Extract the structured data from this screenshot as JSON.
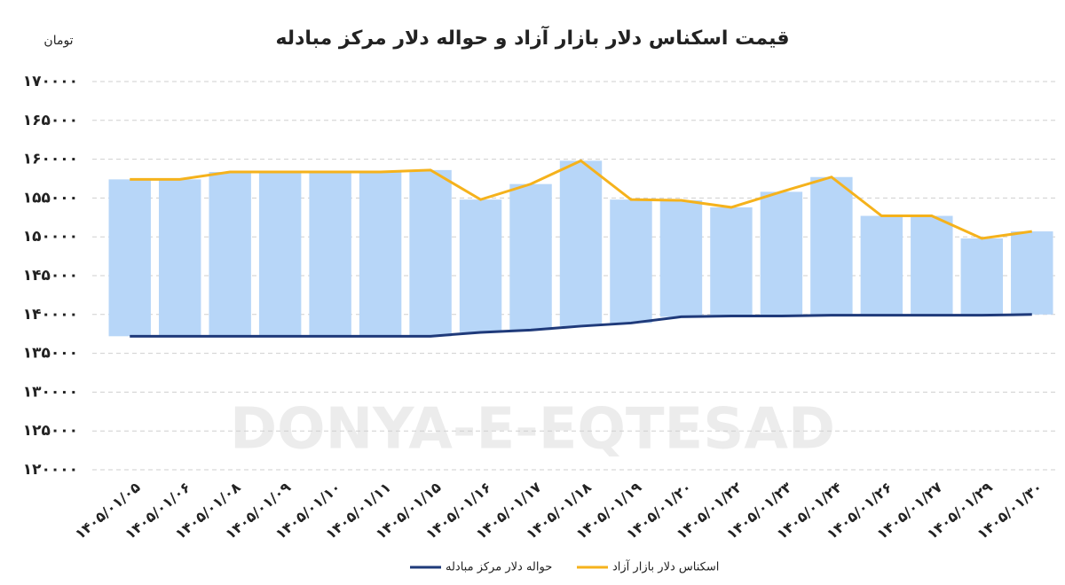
{
  "chart_data": {
    "type": "range-line",
    "title": "قیمت اسکناس دلار بازار آزاد و حواله دلار مرکز مبادله",
    "y_axis_label": "تومان",
    "watermark": "DONYA-E-EQTESAD",
    "categories": [
      "۱۴۰۵/۰۱/۰۵",
      "۱۴۰۵/۰۱/۰۶",
      "۱۴۰۵/۰۱/۰۸",
      "۱۴۰۵/۰۱/۰۹",
      "۱۴۰۵/۰۱/۱۰",
      "۱۴۰۵/۰۱/۱۱",
      "۱۴۰۵/۰۱/۱۵",
      "۱۴۰۵/۰۱/۱۶",
      "۱۴۰۵/۰۱/۱۷",
      "۱۴۰۵/۰۱/۱۸",
      "۱۴۰۵/۰۱/۱۹",
      "۱۴۰۵/۰۱/۲۰",
      "۱۴۰۵/۰۱/۲۲",
      "۱۴۰۵/۰۱/۲۳",
      "۱۴۰۵/۰۱/۲۴",
      "۱۴۰۵/۰۱/۲۶",
      "۱۴۰۵/۰۱/۲۷",
      "۱۴۰۵/۰۱/۲۹",
      "۱۴۰۵/۰۱/۳۰"
    ],
    "series": [
      {
        "name": "حواله دلار مرکز مبادله",
        "color": "#1f3a7a",
        "values": [
          137200,
          137200,
          137200,
          137200,
          137200,
          137200,
          137200,
          137700,
          138000,
          138500,
          138900,
          139700,
          139800,
          139800,
          139900,
          139900,
          139900,
          139900,
          140000
        ]
      },
      {
        "name": "اسکناس دلار بازار آزاد",
        "color": "#f5b21c",
        "values": [
          157400,
          157400,
          158350,
          158350,
          158350,
          158350,
          158600,
          154800,
          156800,
          159800,
          154800,
          154700,
          153800,
          155800,
          157700,
          152700,
          152700,
          149800,
          150700
        ]
      }
    ],
    "range_color": "#b7d6f8",
    "ylim": [
      120000,
      170000
    ],
    "yticks": [
      {
        "value": 120000,
        "label": "۱۲۰۰۰۰"
      },
      {
        "value": 125000,
        "label": "۱۲۵۰۰۰"
      },
      {
        "value": 130000,
        "label": "۱۳۰۰۰۰"
      },
      {
        "value": 135000,
        "label": "۱۳۵۰۰۰"
      },
      {
        "value": 140000,
        "label": "۱۴۰۰۰۰"
      },
      {
        "value": 145000,
        "label": "۱۴۵۰۰۰"
      },
      {
        "value": 150000,
        "label": "۱۵۰۰۰۰"
      },
      {
        "value": 155000,
        "label": "۱۵۵۰۰۰"
      },
      {
        "value": 160000,
        "label": "۱۶۰۰۰۰"
      },
      {
        "value": 165000,
        "label": "۱۶۵۰۰۰"
      },
      {
        "value": 170000,
        "label": "۱۷۰۰۰۰"
      }
    ],
    "grid": true
  }
}
